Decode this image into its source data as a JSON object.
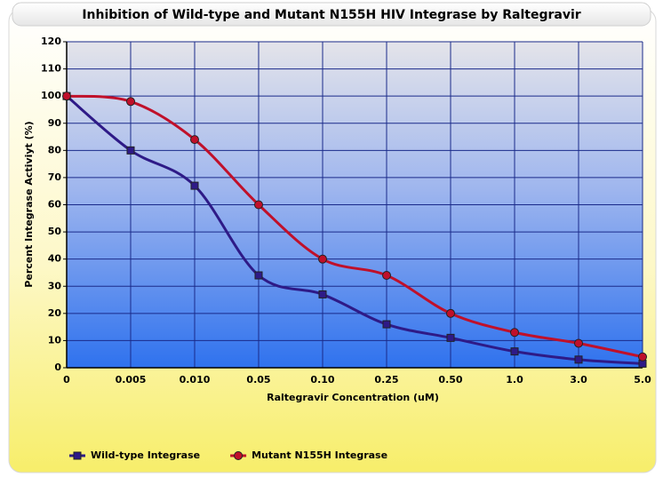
{
  "chart_data": {
    "type": "line",
    "title": "Inhibition of Wild-type and Mutant N155H HIV Integrase by Raltegravir",
    "x_label": "Raltegravir Concentration (uM)",
    "y_label": "Percent Integrase Activiyt (%)",
    "categories": [
      "0",
      "0.005",
      "0.010",
      "0.05",
      "0.10",
      "0.25",
      "0.50",
      "1.0",
      "3.0",
      "5.0"
    ],
    "series": [
      {
        "name": "Wild-type Integrase",
        "color": "#2e1a87",
        "marker": "square",
        "values": [
          100,
          80,
          67,
          34,
          27,
          16,
          11,
          6,
          3,
          1.5
        ]
      },
      {
        "name": "Mutant N155H Integrase",
        "color": "#c0102a",
        "marker": "circle",
        "values": [
          100,
          98,
          84,
          60,
          40,
          34,
          20,
          13,
          9,
          4
        ]
      }
    ],
    "ylim": [
      0,
      120
    ],
    "yticks": [
      0,
      10,
      20,
      30,
      40,
      50,
      60,
      70,
      80,
      90,
      100,
      110,
      120
    ],
    "grid": true,
    "smooth": true,
    "legend": "bottom-left"
  }
}
